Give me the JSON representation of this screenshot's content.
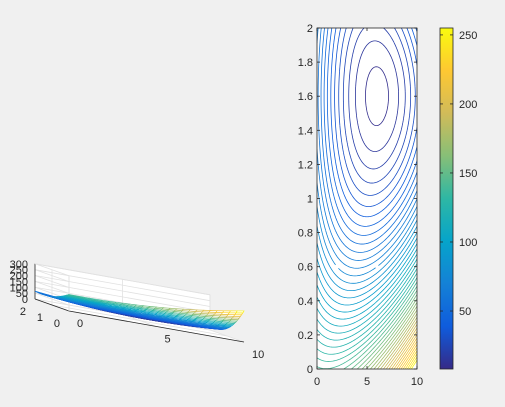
{
  "chart_data": [
    {
      "type": "surface3d",
      "title": "",
      "xlabel": "",
      "ylabel": "",
      "zlabel": "",
      "xlim": [
        0,
        10
      ],
      "ylim": [
        0,
        2
      ],
      "zlim": [
        0,
        300
      ],
      "x_ticks": [
        0,
        5,
        10
      ],
      "y_ticks": [
        0,
        1,
        2
      ],
      "z_ticks": [
        0,
        50,
        100,
        150,
        200,
        250,
        300
      ],
      "x_tick_labels": [
        "0",
        "5",
        "10"
      ],
      "y_tick_labels": [
        "0",
        "1",
        "2"
      ],
      "z_tick_labels": [
        "0",
        "50",
        "100",
        "150",
        "200",
        "250",
        "300"
      ],
      "grid": true,
      "colormap": "parula",
      "color_range": [
        8,
        255
      ],
      "surface_corners": [
        {
          "x": 0,
          "y": 2,
          "z": 50
        },
        {
          "x": 0,
          "y": 0,
          "z": 145
        },
        {
          "x": 10,
          "y": 0,
          "z": 255
        },
        {
          "x": 10,
          "y": 2,
          "z": 60
        },
        {
          "x": 6,
          "y": 1.6,
          "z": 8
        }
      ]
    },
    {
      "type": "contour",
      "title": "",
      "xlabel": "",
      "ylabel": "",
      "xlim": [
        0,
        10
      ],
      "ylim": [
        0,
        2
      ],
      "x_ticks": [
        0,
        5,
        10
      ],
      "y_ticks": [
        0,
        0.2,
        0.4,
        0.6,
        0.8,
        1,
        1.2,
        1.4,
        1.6,
        1.8,
        2
      ],
      "x_tick_labels": [
        "0",
        "5",
        "10"
      ],
      "y_tick_labels": [
        "0",
        "0.2",
        "0.4",
        "0.6",
        "0.8",
        "1",
        "1.2",
        "1.4",
        "1.6",
        "1.8",
        "2"
      ],
      "levels_min": 10,
      "levels_max": 250,
      "level_step": 5,
      "minimum_at": {
        "x": 6,
        "y": 1.6
      },
      "colormap": "parula",
      "color_range": [
        8,
        255
      ]
    }
  ],
  "colorbar": {
    "range": [
      8,
      255
    ],
    "ticks": [
      50,
      100,
      150,
      200,
      250
    ],
    "tick_labels": [
      "50",
      "100",
      "150",
      "200",
      "250"
    ],
    "colormap": "parula",
    "location": "right"
  }
}
